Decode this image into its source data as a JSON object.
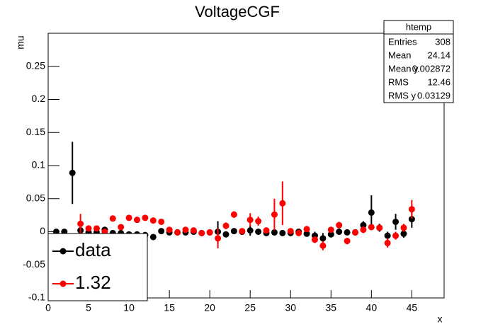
{
  "chart_data": {
    "type": "scatter",
    "title": "VoltageCGF",
    "x_label": "x",
    "y_label": "mu",
    "xlim": [
      0,
      49
    ],
    "ylim": [
      -0.1,
      0.3
    ],
    "xticks": [
      0,
      5,
      10,
      15,
      20,
      25,
      30,
      35,
      40,
      45
    ],
    "yticks": [
      -0.1,
      -0.05,
      0,
      0.05,
      0.1,
      0.15,
      0.2,
      0.25
    ],
    "series": [
      {
        "name": "data",
        "color": "#000000",
        "x": [
          1,
          2,
          3,
          4,
          5,
          6,
          7,
          8,
          9,
          10,
          11,
          12,
          13,
          14,
          15,
          16,
          17,
          18,
          19,
          20,
          21,
          22,
          23,
          24,
          25,
          26,
          27,
          28,
          29,
          30,
          31,
          32,
          33,
          34,
          35,
          36,
          37,
          38,
          39,
          40,
          41,
          42,
          43,
          44,
          45
        ],
        "values": [
          0,
          0,
          0.089,
          0.002,
          -0.001,
          -0.001,
          0.003,
          -0.002,
          -0.002,
          -0.004,
          -0.004,
          -0.005,
          -0.008,
          0.001,
          -0.001,
          -0.001,
          -0.001,
          0,
          -0.002,
          -0.001,
          0,
          -0.004,
          0.001,
          0,
          0.002,
          0,
          -0.002,
          -0.001,
          -0.002,
          -0.002,
          0,
          -0.003,
          -0.006,
          -0.01,
          -0.004,
          0,
          -0.001,
          -0.001,
          0.01,
          0.029,
          0.006,
          -0.006,
          0.015,
          -0.003,
          0.019
        ],
        "errors": [
          0.003,
          0.003,
          0.047,
          0.012,
          0.003,
          0.003,
          0.003,
          0.003,
          0.003,
          0.003,
          0.003,
          0.003,
          0.003,
          0.003,
          0.003,
          0.003,
          0.003,
          0.003,
          0.003,
          0.003,
          0.016,
          0.004,
          0.003,
          0.003,
          0.008,
          0.003,
          0.003,
          0.004,
          0.004,
          0.003,
          0.003,
          0.004,
          0.006,
          0.008,
          0.004,
          0.004,
          0.003,
          0.004,
          0.006,
          0.026,
          0.006,
          0.006,
          0.012,
          0.006,
          0.013
        ]
      },
      {
        "name": "1.32",
        "color": "#ff0000",
        "x": [
          4,
          5,
          6,
          7,
          8,
          9,
          10,
          11,
          12,
          13,
          14,
          15,
          16,
          17,
          18,
          19,
          20,
          21,
          22,
          23,
          24,
          25,
          26,
          27,
          28,
          29,
          30,
          31,
          32,
          33,
          34,
          35,
          36,
          37,
          38,
          39,
          40,
          41,
          42,
          43,
          44,
          45
        ],
        "values": [
          0.012,
          0.005,
          0.005,
          0,
          0.02,
          0.007,
          0.021,
          0.018,
          0.021,
          0.017,
          0.015,
          0.003,
          -0.001,
          0.003,
          0.002,
          -0.002,
          -0.001,
          -0.01,
          0.009,
          0.026,
          0.001,
          0.018,
          0.016,
          0.002,
          0.026,
          0.043,
          0.001,
          -0.002,
          0.004,
          -0.012,
          -0.021,
          0.003,
          0.01,
          -0.014,
          -0.001,
          0.003,
          0.007,
          0.006,
          -0.017,
          -0.006,
          0.006,
          0.034
        ],
        "errors": [
          0.015,
          0.004,
          0.004,
          0.003,
          0.003,
          0.004,
          0.003,
          0.003,
          0.003,
          0.003,
          0.003,
          0.003,
          0.003,
          0.003,
          0.003,
          0.003,
          0.003,
          0.015,
          0.005,
          0.005,
          0.003,
          0.01,
          0.007,
          0.004,
          0.024,
          0.033,
          0.004,
          0.004,
          0.004,
          0.005,
          0.007,
          0.004,
          0.005,
          0.005,
          0.004,
          0.005,
          0.004,
          0.004,
          0.007,
          0.006,
          0.006,
          0.014
        ]
      }
    ],
    "stats": {
      "title": "htemp",
      "rows": [
        [
          "Entries",
          "308"
        ],
        [
          "Mean",
          "24.14"
        ],
        [
          "Mean y",
          "0.002872"
        ],
        [
          "RMS",
          "12.46"
        ],
        [
          "RMS y",
          "0.03129"
        ]
      ]
    }
  }
}
